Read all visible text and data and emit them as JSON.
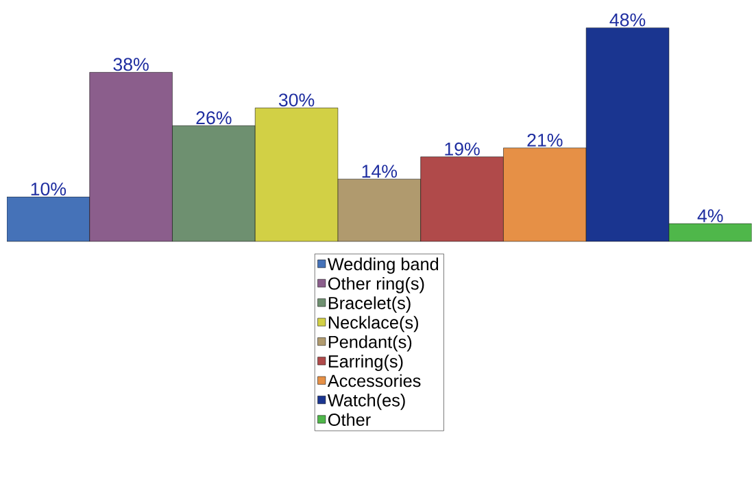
{
  "chart_data": {
    "type": "bar",
    "categories": [
      null
    ],
    "series": [
      {
        "name": "Wedding band",
        "color": "#4572b8",
        "values": [
          10
        ],
        "value_labels": [
          "10%"
        ]
      },
      {
        "name": "Other ring(s)",
        "color": "#8b5e8c",
        "values": [
          38
        ],
        "value_labels": [
          "38%"
        ]
      },
      {
        "name": "Bracelet(s)",
        "color": "#6e9070",
        "values": [
          26
        ],
        "value_labels": [
          "26%"
        ]
      },
      {
        "name": "Necklace(s)",
        "color": "#d2d045",
        "values": [
          30
        ],
        "value_labels": [
          "30%"
        ]
      },
      {
        "name": "Pendant(s)",
        "color": "#b09a6e",
        "values": [
          14
        ],
        "value_labels": [
          "14%"
        ]
      },
      {
        "name": "Earring(s)",
        "color": "#b04a4a",
        "values": [
          19
        ],
        "value_labels": [
          "19%"
        ]
      },
      {
        "name": "Accessories",
        "color": "#e69046",
        "values": [
          21
        ],
        "value_labels": [
          "21%"
        ]
      },
      {
        "name": "Watch(es)",
        "color": "#1a3590",
        "values": [
          48
        ],
        "value_labels": [
          "48%"
        ]
      },
      {
        "name": "Other",
        "color": "#4fb74a",
        "values": [
          4
        ],
        "value_labels": [
          "4%"
        ]
      }
    ],
    "legend": "bottom"
  }
}
